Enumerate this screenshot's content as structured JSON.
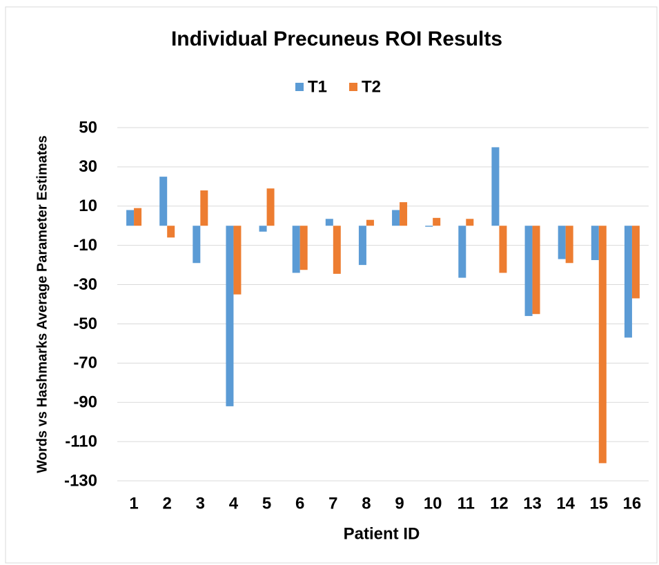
{
  "chart_data": {
    "type": "bar",
    "title": "Individual Precuneus ROI Results",
    "x_label": "Patient ID",
    "y_label": "Words vs Hashmarks Average Parameter Estimates",
    "categories": [
      "1",
      "2",
      "3",
      "4",
      "5",
      "6",
      "7",
      "8",
      "9",
      "10",
      "11",
      "12",
      "13",
      "14",
      "15",
      "16"
    ],
    "series": [
      {
        "name": "T1",
        "color": "#5b9bd5",
        "values": [
          8,
          25,
          -19,
          -92,
          -3,
          -24,
          3.5,
          -20,
          8,
          -0.5,
          -26.5,
          40,
          -46,
          -17,
          -17.5,
          -57
        ]
      },
      {
        "name": "T2",
        "color": "#ed7d31",
        "values": [
          9,
          -6,
          18,
          -35,
          19,
          -22.5,
          -24.5,
          3,
          12,
          4,
          3.5,
          -24,
          -45,
          -19,
          -121,
          -37
        ]
      }
    ],
    "ylim": [
      -130,
      50
    ],
    "yticks": [
      50,
      30,
      10,
      -10,
      -30,
      -50,
      -70,
      -90,
      -110,
      -130
    ],
    "grid": true,
    "legend": "top"
  }
}
